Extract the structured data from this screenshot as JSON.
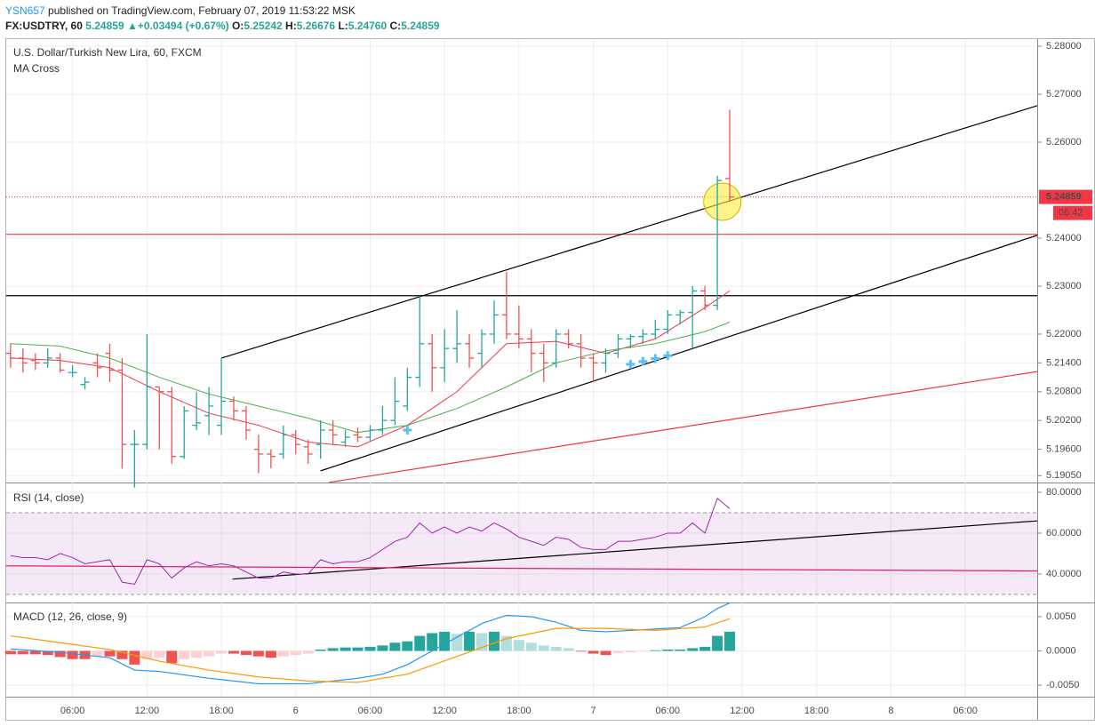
{
  "header": {
    "user": "YSN657",
    "published": "published on TradingView.com, February 07, 2019 11:53:22 MSK",
    "symbol": "FX:USDTRY, 60",
    "price": "5.24859",
    "arrow": "▲",
    "change": "+0.03494 (+0.67%)",
    "o_label": "O:",
    "o": "5.25242",
    "h_label": "H:",
    "h": "5.26676",
    "l_label": "L:",
    "l": "5.24760",
    "c_label": "C:",
    "c": "5.24859"
  },
  "chart_data": [
    {
      "type": "ohlc",
      "title": "U.S. Dollar/Turkish New Lira, 60, FXCM",
      "subtitle": "MA Cross",
      "xlim": [
        0.65,
        83.8
      ],
      "ylim": [
        5.18907,
        5.28148
      ],
      "yticks": [
        {
          "value": 5.28,
          "label": "5.28000"
        },
        {
          "value": 5.27,
          "label": "5.27000"
        },
        {
          "value": 5.26,
          "label": "5.26000"
        },
        {
          "value": 5.24,
          "label": "5.24000"
        },
        {
          "value": 5.23,
          "label": "5.23000"
        },
        {
          "value": 5.22,
          "label": "5.22000"
        },
        {
          "value": 5.214,
          "label": "5.21400"
        },
        {
          "value": 5.208,
          "label": "5.20800"
        },
        {
          "value": 5.202,
          "label": "5.20200"
        },
        {
          "value": 5.196,
          "label": "5.19600"
        },
        {
          "value": 5.1905,
          "label": "5.19050"
        }
      ],
      "grid": true,
      "up_color": "#26a69a",
      "down_color": "#ef5350",
      "bars": {
        "x": [
          1,
          2,
          3,
          4,
          5,
          6,
          7,
          8,
          9,
          10,
          11,
          12,
          13,
          14,
          15,
          16,
          17,
          18,
          19,
          20,
          21,
          22,
          23,
          24,
          25,
          26,
          27,
          28,
          29,
          30,
          31,
          32,
          33,
          34,
          35,
          36,
          37,
          38,
          39,
          40,
          41,
          42,
          43,
          44,
          45,
          46,
          47,
          48,
          49,
          50,
          51,
          52,
          53,
          54,
          55,
          56,
          57,
          58,
          59
        ],
        "open": [
          5.216,
          5.215,
          5.2145,
          5.214,
          5.215,
          5.212,
          5.2095,
          5.214,
          5.216,
          5.2125,
          5.197,
          5.197,
          5.209,
          5.208,
          5.1945,
          5.201,
          5.203,
          5.201,
          5.206,
          5.204,
          5.196,
          5.195,
          5.195,
          5.199,
          5.1965,
          5.197,
          5.2,
          5.1975,
          5.199,
          5.1985,
          5.2,
          5.202,
          5.205,
          5.211,
          5.218,
          5.213,
          5.217,
          5.218,
          5.216,
          5.22,
          5.224,
          5.22,
          5.219,
          5.216,
          5.214,
          5.22,
          5.218,
          5.215,
          5.214,
          5.216,
          5.219,
          5.2195,
          5.22,
          5.221,
          5.224,
          5.2245,
          5.229,
          5.226,
          5.25242
        ],
        "high": [
          5.218,
          5.217,
          5.216,
          5.217,
          5.216,
          5.2135,
          5.211,
          5.216,
          5.218,
          5.215,
          5.2,
          5.22,
          5.209,
          5.209,
          5.205,
          5.208,
          5.209,
          5.215,
          5.207,
          5.205,
          5.199,
          5.196,
          5.201,
          5.2,
          5.198,
          5.202,
          5.202,
          5.2,
          5.2005,
          5.201,
          5.205,
          5.211,
          5.213,
          5.228,
          5.22,
          5.221,
          5.225,
          5.22,
          5.221,
          5.227,
          5.233,
          5.226,
          5.221,
          5.218,
          5.221,
          5.221,
          5.22,
          5.216,
          5.217,
          5.22,
          5.22,
          5.221,
          5.223,
          5.225,
          5.225,
          5.23,
          5.23,
          5.253,
          5.26676
        ],
        "low": [
          5.213,
          5.212,
          5.2125,
          5.213,
          5.212,
          5.211,
          5.2085,
          5.211,
          5.21,
          5.192,
          5.188,
          5.196,
          5.196,
          5.193,
          5.194,
          5.2,
          5.199,
          5.199,
          5.202,
          5.198,
          5.191,
          5.192,
          5.194,
          5.195,
          5.193,
          5.194,
          5.197,
          5.1965,
          5.1975,
          5.1975,
          5.199,
          5.201,
          5.204,
          5.209,
          5.208,
          5.21,
          5.214,
          5.213,
          5.213,
          5.218,
          5.219,
          5.217,
          5.212,
          5.21,
          5.213,
          5.217,
          5.213,
          5.21,
          5.212,
          5.215,
          5.217,
          5.218,
          5.219,
          5.22,
          5.222,
          5.217,
          5.225,
          5.225,
          5.2476
        ],
        "close": [
          5.215,
          5.214,
          5.214,
          5.215,
          5.2125,
          5.212,
          5.21,
          5.213,
          5.2125,
          5.197,
          5.197,
          5.209,
          5.208,
          5.1945,
          5.204,
          5.2015,
          5.205,
          5.206,
          5.204,
          5.2,
          5.195,
          5.1945,
          5.199,
          5.197,
          5.195,
          5.2,
          5.199,
          5.1985,
          5.1985,
          5.2,
          5.202,
          5.206,
          5.211,
          5.218,
          5.213,
          5.217,
          5.218,
          5.215,
          5.22,
          5.224,
          5.22,
          5.219,
          5.216,
          5.214,
          5.22,
          5.218,
          5.215,
          5.214,
          5.216,
          5.219,
          5.2195,
          5.22,
          5.221,
          5.224,
          5.2245,
          5.229,
          5.226,
          5.252,
          5.24859
        ]
      },
      "series": [
        {
          "color": "#f23645",
          "x": [
            1,
            5,
            9,
            13,
            17,
            21,
            25,
            29,
            33,
            37,
            41,
            45,
            49,
            53,
            57,
            59
          ],
          "values": [
            5.215,
            5.2145,
            5.213,
            5.208,
            5.2035,
            5.201,
            5.1975,
            5.1965,
            5.201,
            5.208,
            5.218,
            5.2185,
            5.216,
            5.219,
            5.2255,
            5.229
          ]
        },
        {
          "color": "#4caf50",
          "x": [
            1,
            5,
            9,
            13,
            17,
            21,
            25,
            29,
            33,
            37,
            41,
            45,
            49,
            53,
            57,
            59
          ],
          "values": [
            5.218,
            5.2175,
            5.215,
            5.211,
            5.2075,
            5.205,
            5.2025,
            5.1995,
            5.201,
            5.2045,
            5.209,
            5.214,
            5.2165,
            5.218,
            5.2205,
            5.2225
          ]
        }
      ],
      "crosses": {
        "color": "#5bc0eb",
        "x": [
          33,
          51,
          52,
          53,
          54
        ],
        "values": [
          5.2,
          5.2137,
          5.2143,
          5.2149,
          5.2155
        ]
      },
      "lines": [
        {
          "color": "#000000",
          "x": [
            18,
            83.8
          ],
          "y": [
            5.215,
            5.2676
          ]
        },
        {
          "color": "#000000",
          "x": [
            26,
            83.8
          ],
          "y": [
            5.1915,
            5.2406
          ]
        },
        {
          "color": "#f23645",
          "x": [
            26.7,
            83.8
          ],
          "y": [
            5.1891,
            5.2122
          ]
        }
      ],
      "hlines": [
        {
          "value": 5.228,
          "color": "#000000"
        },
        {
          "value": 5.2408,
          "color": "#f23645"
        }
      ],
      "highlight": {
        "x": 58.4,
        "y": 5.2476,
        "color": "#ffeb3b"
      },
      "last_price": 5.24859,
      "last_price_label": "5.24859",
      "last_price_color": "#f23645",
      "countdown": "06:42"
    },
    {
      "type": "line",
      "title": "RSI (14, close)",
      "xlim": [
        0.65,
        83.8
      ],
      "ylim": [
        26.5,
        83.9
      ],
      "yticks": [
        {
          "value": 80,
          "label": "80.0000"
        },
        {
          "value": 60,
          "label": "60.0000"
        },
        {
          "value": 40,
          "label": "40.0000"
        }
      ],
      "band": [
        30,
        70
      ],
      "band_color": "#9c27b0",
      "color": "#9c27b0",
      "x": [
        1,
        2,
        3,
        4,
        5,
        6,
        7,
        8,
        9,
        10,
        11,
        12,
        13,
        14,
        15,
        16,
        17,
        18,
        19,
        20,
        21,
        22,
        23,
        24,
        25,
        26,
        27,
        28,
        29,
        30,
        31,
        32,
        33,
        34,
        35,
        36,
        37,
        38,
        39,
        40,
        41,
        42,
        43,
        44,
        45,
        46,
        47,
        48,
        49,
        50,
        51,
        52,
        53,
        54,
        55,
        56,
        57,
        58,
        59
      ],
      "values": [
        49,
        48,
        48,
        47,
        50,
        48,
        45,
        46,
        47,
        36,
        35,
        47,
        45,
        38,
        43,
        46,
        44,
        45,
        44,
        41,
        38,
        38,
        41,
        40,
        40,
        47,
        45,
        46,
        46,
        48,
        52,
        56,
        58,
        65,
        60,
        63,
        60,
        63,
        61,
        65,
        62,
        58,
        56,
        54,
        58,
        57,
        53,
        52,
        52,
        56,
        56,
        57,
        58,
        60,
        60,
        65,
        60,
        77,
        72
      ],
      "lines": [
        {
          "color": "#000000",
          "x": [
            18.9,
            83.8
          ],
          "y": [
            37.5,
            66
          ]
        },
        {
          "color": "#e91e63",
          "x": [
            0.65,
            83.8
          ],
          "y": [
            44,
            41.5
          ]
        }
      ]
    },
    {
      "type": "macd",
      "title": "MACD (12, 26, close, 9)",
      "xlim": [
        0.65,
        83.8
      ],
      "ylim": [
        -0.00656,
        0.00682
      ],
      "yticks": [
        {
          "value": 0.005,
          "label": "0.0050"
        },
        {
          "value": 0,
          "label": "0.0000"
        },
        {
          "value": -0.005,
          "label": "-0.0050"
        }
      ],
      "xticks": [
        {
          "value": 6,
          "label": "06:00"
        },
        {
          "value": 12,
          "label": "12:00"
        },
        {
          "value": 18,
          "label": "18:00"
        },
        {
          "value": 24,
          "label": "6"
        },
        {
          "value": 30,
          "label": "06:00"
        },
        {
          "value": 36,
          "label": "12:00"
        },
        {
          "value": 42,
          "label": "18:00"
        },
        {
          "value": 48,
          "label": "7"
        },
        {
          "value": 54,
          "label": "06:00"
        },
        {
          "value": 60,
          "label": "12:00"
        },
        {
          "value": 66,
          "label": "18:00"
        },
        {
          "value": 72,
          "label": "8"
        },
        {
          "value": 78,
          "label": "06:00"
        }
      ],
      "hist_colors": {
        "rising_above": "#26a69a",
        "falling_above": "#b2dfdb",
        "falling_below": "#ef5350",
        "rising_below": "#ffcdd2"
      },
      "hist": {
        "x": [
          1,
          2,
          3,
          4,
          5,
          6,
          7,
          8,
          9,
          10,
          11,
          12,
          13,
          14,
          15,
          16,
          17,
          18,
          19,
          20,
          21,
          22,
          23,
          24,
          25,
          26,
          27,
          28,
          29,
          30,
          31,
          32,
          33,
          34,
          35,
          36,
          37,
          38,
          39,
          40,
          41,
          42,
          43,
          44,
          45,
          46,
          47,
          48,
          49,
          50,
          51,
          52,
          53,
          54,
          55,
          56,
          57,
          58,
          59
        ],
        "values": [
          -0.0005,
          -0.0005,
          -0.0005,
          -0.0006,
          -0.0009,
          -0.0012,
          -0.0012,
          -0.0008,
          -0.0008,
          -0.0012,
          -0.002,
          -0.0012,
          -0.001,
          -0.0018,
          -0.0012,
          -0.001,
          -0.0008,
          -0.0004,
          -0.0004,
          -0.0006,
          -0.0008,
          -0.001,
          -0.0008,
          -0.0006,
          -0.0004,
          0.0002,
          0.0004,
          0.0005,
          0.0005,
          0.0006,
          0.0008,
          0.0012,
          0.0014,
          0.0022,
          0.0026,
          0.0028,
          0.0025,
          0.0028,
          0.0026,
          0.0028,
          0.0022,
          0.0016,
          0.0012,
          0.0008,
          0.0006,
          0.0004,
          -0.0001,
          -0.0004,
          -0.0006,
          -0.0003,
          -0.0002,
          -0.0001,
          0.0001,
          0.0002,
          0.0002,
          0.0004,
          0.0006,
          0.0022,
          0.0028
        ]
      },
      "series": [
        {
          "color": "#2196f3",
          "x": [
            1,
            5,
            9,
            11,
            13,
            17,
            21,
            25,
            29,
            31,
            33,
            35,
            37,
            39,
            41,
            43,
            45,
            47,
            49,
            51,
            53,
            55,
            57,
            58,
            59
          ],
          "values": [
            0.0003,
            -0.0002,
            -0.001,
            -0.0028,
            -0.003,
            -0.004,
            -0.0048,
            -0.0048,
            -0.004,
            -0.0034,
            -0.002,
            0.0,
            0.002,
            0.004,
            0.0052,
            0.005,
            0.0042,
            0.003,
            0.0028,
            0.003,
            0.0032,
            0.0034,
            0.005,
            0.0062,
            0.007
          ]
        },
        {
          "color": "#ff9800",
          "x": [
            1,
            5,
            9,
            13,
            17,
            21,
            25,
            29,
            33,
            37,
            41,
            45,
            49,
            53,
            57,
            59
          ],
          "values": [
            0.0022,
            0.0012,
            0.0002,
            -0.0015,
            -0.0028,
            -0.0038,
            -0.0044,
            -0.0046,
            -0.0034,
            -0.0008,
            0.0018,
            0.0033,
            0.0033,
            0.003,
            0.0035,
            0.0047
          ]
        }
      ]
    }
  ]
}
